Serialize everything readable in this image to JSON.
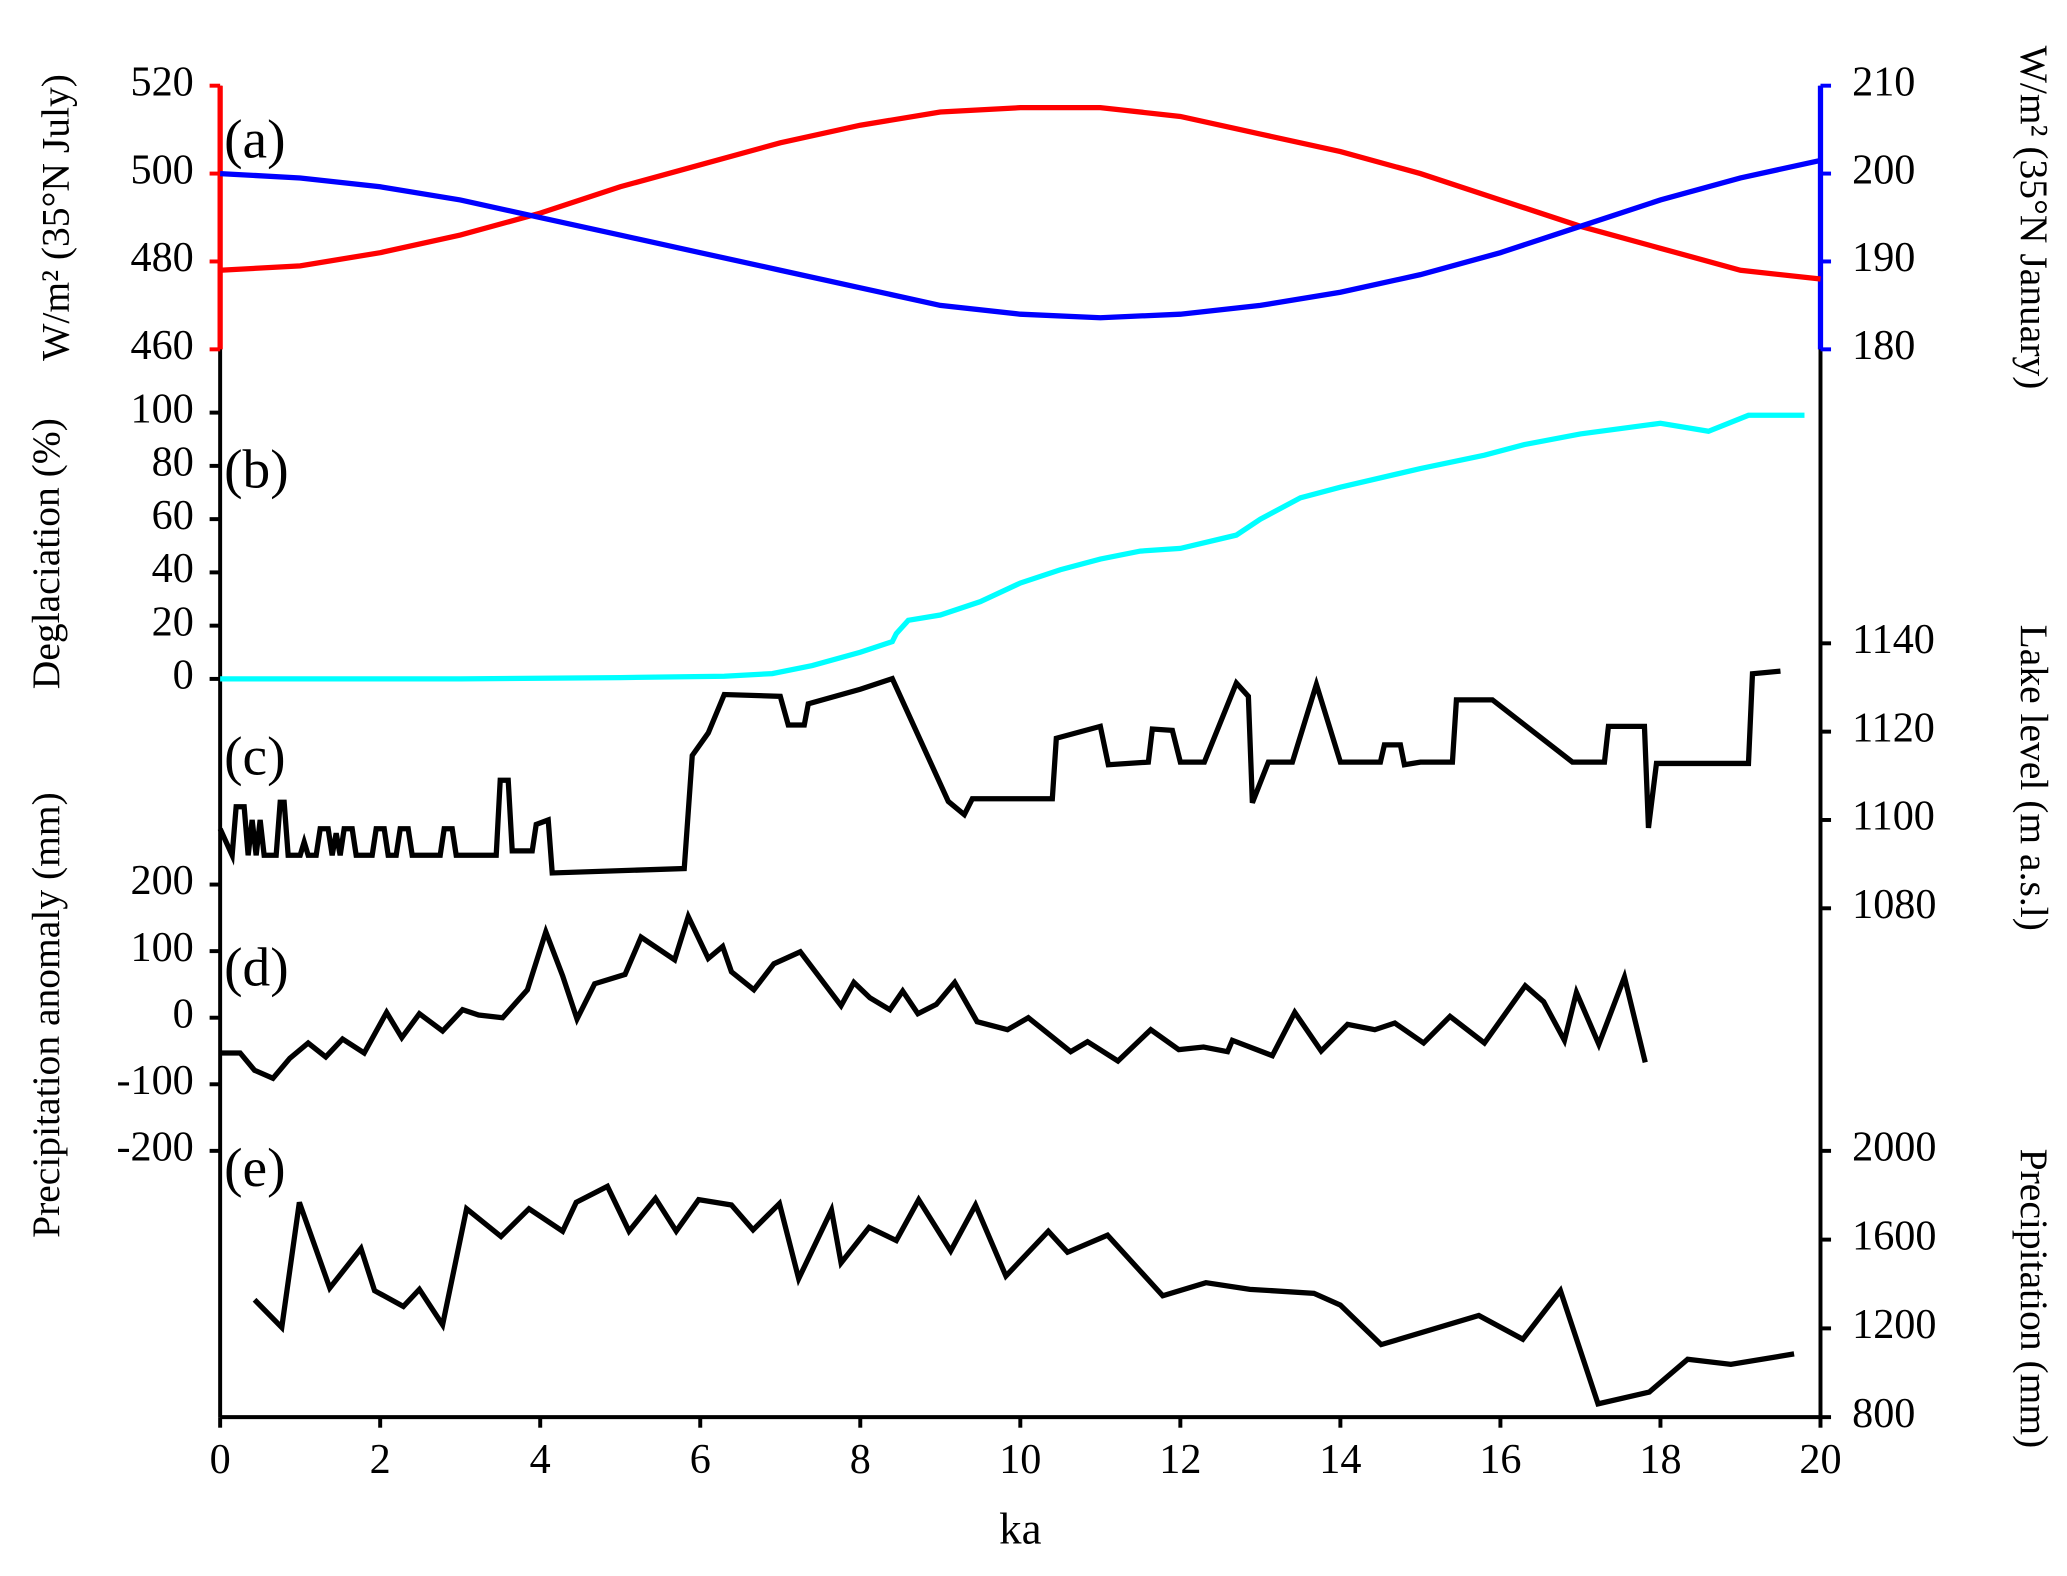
{
  "chart_data": [
    {
      "type": "line",
      "label": "(a)",
      "ylabel": "W/m² (35°N July)",
      "y2label": "W/m² (35°N January)",
      "ylim": [
        460,
        520
      ],
      "yticks": [
        460,
        480,
        500,
        520
      ],
      "y2lim": [
        180,
        210
      ],
      "y2ticks": [
        180,
        190,
        200,
        210
      ],
      "ycolor": "#ff0000",
      "y2color": "#0000ff",
      "series": [
        {
          "color": "#ff0000",
          "x": [
            0,
            1,
            2,
            3,
            4,
            5,
            6,
            7,
            8,
            9,
            10,
            11,
            12,
            13,
            14,
            15,
            16,
            17,
            18,
            19,
            20
          ],
          "values": [
            478,
            479,
            482,
            486,
            491,
            497,
            502,
            507,
            511,
            514,
            515,
            515,
            513,
            509,
            505,
            500,
            494,
            488,
            483,
            478,
            476
          ]
        },
        {
          "color": "#0000ff",
          "axis": "y2",
          "x": [
            0,
            1,
            2,
            3,
            4,
            5,
            6,
            7,
            8,
            9,
            10,
            11,
            12,
            13,
            14,
            15,
            16,
            17,
            18,
            19,
            20
          ],
          "values": [
            200,
            199.5,
            198.5,
            197,
            195,
            193,
            191,
            189,
            187,
            185,
            184,
            183.6,
            184,
            185,
            186.5,
            188.5,
            191,
            194,
            197,
            199.5,
            201.5
          ]
        }
      ]
    },
    {
      "type": "line",
      "label": "(b)",
      "ylabel": "Deglaciation (%)",
      "ylim": [
        0,
        100
      ],
      "yticks": [
        0,
        20,
        40,
        60,
        80,
        100
      ],
      "series": [
        {
          "color": "#00ffff",
          "x": [
            0,
            3,
            5,
            6.3,
            6.9,
            7.4,
            8,
            8.4,
            8.45,
            8.6,
            9,
            9.5,
            10,
            10.5,
            11,
            11.5,
            12,
            12.7,
            13,
            13.5,
            14,
            15,
            15.8,
            16.3,
            17,
            18,
            18.6,
            19.1,
            19.8
          ],
          "values": [
            0,
            0,
            0.5,
            1,
            2,
            5,
            10,
            14,
            17,
            22,
            24,
            29,
            36,
            41,
            45,
            48,
            49,
            54,
            60,
            68,
            72,
            79,
            84,
            88,
            92,
            96,
            93,
            99,
            99
          ]
        }
      ]
    },
    {
      "type": "line",
      "label": "(c)",
      "y2label": "Lake level (m a.s.l)",
      "y2lim": [
        1080,
        1140
      ],
      "y2ticks": [
        1080,
        1100,
        1120,
        1140
      ],
      "series": [
        {
          "color": "#000000",
          "axis": "y2",
          "x": [
            0,
            0.15,
            0.2,
            0.3,
            0.35,
            0.4,
            0.45,
            0.5,
            0.55,
            0.7,
            0.75,
            0.8,
            0.85,
            1.0,
            1.05,
            1.1,
            1.2,
            1.25,
            1.35,
            1.4,
            1.45,
            1.5,
            1.55,
            1.65,
            1.7,
            1.9,
            1.95,
            2.05,
            2.1,
            2.2,
            2.25,
            2.35,
            2.4,
            2.75,
            2.8,
            2.9,
            2.95,
            3.45,
            3.5,
            3.6,
            3.65,
            3.9,
            3.95,
            4.1,
            4.15,
            5.8,
            5.9,
            6.1,
            6.3,
            7.0,
            7.1,
            7.3,
            7.35,
            8.0,
            8.4,
            9.1,
            9.3,
            9.4,
            10.4,
            10.45,
            11.0,
            11.1,
            11.6,
            11.65,
            11.9,
            12.0,
            12.3,
            12.7,
            12.85,
            12.9,
            13.1,
            13.4,
            13.7,
            14.0,
            14.5,
            14.55,
            14.75,
            14.8,
            15.0,
            15.4,
            15.45,
            15.9,
            16.9,
            17.3,
            17.35,
            17.8,
            17.85,
            17.95,
            19.1,
            19.15,
            19.5
          ],
          "values": [
            1098,
            1092,
            1103,
            1103,
            1092,
            1100,
            1092,
            1100,
            1092,
            1092,
            1104,
            1104,
            1092,
            1092,
            1095,
            1092,
            1092,
            1098,
            1098,
            1092,
            1097,
            1092,
            1098,
            1098,
            1092,
            1092,
            1098,
            1098,
            1092,
            1092,
            1098,
            1098,
            1092,
            1092,
            1098,
            1098,
            1092,
            1092,
            1109,
            1109,
            1093,
            1093,
            1099,
            1100,
            1088,
            1089,
            1114.6,
            1119.7,
            1128.4,
            1128,
            1121.5,
            1121.5,
            1126.3,
            1129.6,
            1132,
            1104.2,
            1101.2,
            1104.8,
            1104.8,
            1118.5,
            1121.2,
            1112.5,
            1113.1,
            1120.6,
            1120.3,
            1113.1,
            1113.1,
            1131,
            1128,
            1103.9,
            1113.1,
            1113.1,
            1130.7,
            1113.1,
            1113.1,
            1117,
            1117,
            1112.5,
            1113.1,
            1113.1,
            1127.2,
            1127.2,
            1113.1,
            1113.1,
            1121.2,
            1121.2,
            1098.2,
            1112.8,
            1112.8,
            1133.1,
            1133.7
          ]
        }
      ]
    },
    {
      "type": "line",
      "label": "(d)",
      "ylabel": "Precipitation anomaly (mm)",
      "ylim": [
        -200,
        200
      ],
      "yticks": [
        -200,
        -100,
        0,
        100,
        200
      ],
      "series": [
        {
          "color": "#000000",
          "x": [
            0,
            0.25,
            0.43,
            0.66,
            0.87,
            1.1,
            1.32,
            1.53,
            1.8,
            2.08,
            2.27,
            2.49,
            2.78,
            3.03,
            3.23,
            3.53,
            3.84,
            4.07,
            4.28,
            4.46,
            4.68,
            5.06,
            5.26,
            5.68,
            5.85,
            6.1,
            6.28,
            6.39,
            6.67,
            6.92,
            7.25,
            7.76,
            7.92,
            8.12,
            8.37,
            8.53,
            8.72,
            8.95,
            9.18,
            9.46,
            9.84,
            10.1,
            10.63,
            10.84,
            11.22,
            11.63,
            11.98,
            12.29,
            12.59,
            12.65,
            13.15,
            13.43,
            13.76,
            14.09,
            14.43,
            14.68,
            15.04,
            15.37,
            15.8,
            16.31,
            16.54,
            16.8,
            16.95,
            17.23,
            17.55,
            17.81
          ],
          "values": [
            -53,
            -53,
            -79,
            -91,
            -61,
            -38,
            -59,
            -32,
            -53,
            8,
            -30,
            6,
            -20,
            12,
            4,
            0,
            42,
            129,
            63,
            -2,
            51,
            65,
            121,
            87,
            152,
            89,
            107,
            69,
            42,
            81,
            99,
            18,
            53,
            30,
            12,
            40,
            6,
            20,
            53,
            -6,
            -18,
            0,
            -51,
            -36,
            -65,
            -18,
            -48,
            -44,
            -51,
            -34,
            -57,
            8,
            -50,
            -10,
            -18,
            -8,
            -38,
            2,
            -38,
            48,
            24,
            -34,
            38,
            -40,
            61,
            -67
          ]
        }
      ]
    },
    {
      "type": "line",
      "label": "(e)",
      "y2label": "Precipitation (mm)",
      "xlabel": "ka",
      "xlim": [
        0,
        20
      ],
      "xticks": [
        0,
        2,
        4,
        6,
        8,
        10,
        12,
        14,
        16,
        18,
        20
      ],
      "y2lim": [
        800,
        2000
      ],
      "y2ticks": [
        800,
        1200,
        1600,
        2000
      ],
      "series": [
        {
          "color": "#000000",
          "axis": "y2",
          "x": [
            0.43,
            0.77,
            0.99,
            1.37,
            1.76,
            1.93,
            2.29,
            2.49,
            2.78,
            3.08,
            3.51,
            3.86,
            4.28,
            4.45,
            4.84,
            5.11,
            5.44,
            5.7,
            5.98,
            6.39,
            6.66,
            6.99,
            7.23,
            7.64,
            7.76,
            8.11,
            8.45,
            8.73,
            9.13,
            9.44,
            9.82,
            10.35,
            10.59,
            11.09,
            11.78,
            12.32,
            12.87,
            13.67,
            14.0,
            14.51,
            15.73,
            16.28,
            16.75,
            17.22,
            17.86,
            18.34,
            18.88,
            19.67
          ],
          "values": [
            1329,
            1204,
            1768,
            1382,
            1560,
            1370,
            1299,
            1376,
            1216,
            1739,
            1614,
            1739,
            1638,
            1768,
            1840,
            1638,
            1786,
            1638,
            1780,
            1756,
            1644,
            1762,
            1424,
            1733,
            1495,
            1655,
            1596,
            1780,
            1549,
            1756,
            1436,
            1638,
            1543,
            1620,
            1347,
            1406,
            1376,
            1358,
            1305,
            1127,
            1258,
            1151,
            1370,
            860,
            913,
            1061,
            1038,
            1085
          ]
        }
      ]
    }
  ]
}
